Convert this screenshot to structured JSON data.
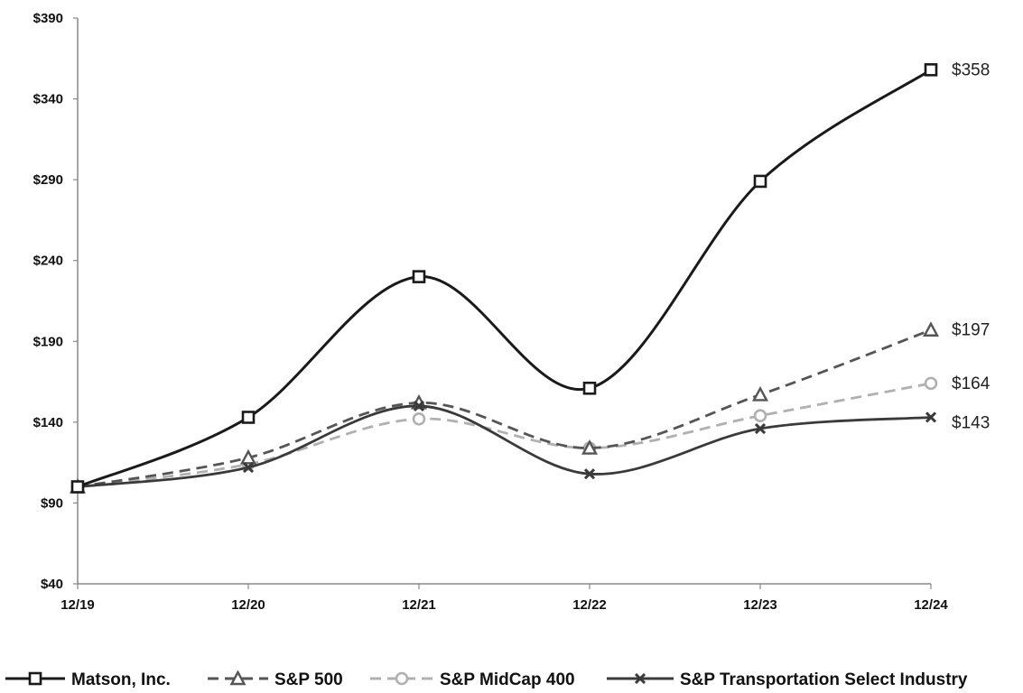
{
  "chart_data": {
    "type": "line",
    "x": [
      "12/19",
      "12/20",
      "12/21",
      "12/22",
      "12/23",
      "12/24"
    ],
    "y_ticks": [
      "$40",
      "$90",
      "$140",
      "$190",
      "$240",
      "$290",
      "$340",
      "$390"
    ],
    "ylim": [
      40,
      390
    ],
    "grid": false,
    "legend_position": "bottom",
    "series": [
      {
        "name": "Matson, Inc.",
        "values": [
          100,
          143,
          230,
          161,
          289,
          358
        ],
        "color": "#1a1a1a",
        "dash": "solid",
        "marker": "square",
        "end_label": "$358"
      },
      {
        "name": "S&P 500",
        "values": [
          100,
          118,
          152,
          124,
          157,
          197
        ],
        "color": "#555555",
        "dash": "dashed",
        "marker": "triangle",
        "end_label": "$197"
      },
      {
        "name": "S&P MidCap 400",
        "values": [
          100,
          114,
          142,
          124,
          144,
          164
        ],
        "color": "#b0b0b0",
        "dash": "dashed",
        "marker": "circle",
        "end_label": "$164"
      },
      {
        "name": "S&P Transportation Select Industry",
        "values": [
          100,
          112,
          150,
          108,
          136,
          143
        ],
        "color": "#3a3a3a",
        "dash": "solid",
        "marker": "x",
        "end_label": "$143"
      }
    ]
  }
}
